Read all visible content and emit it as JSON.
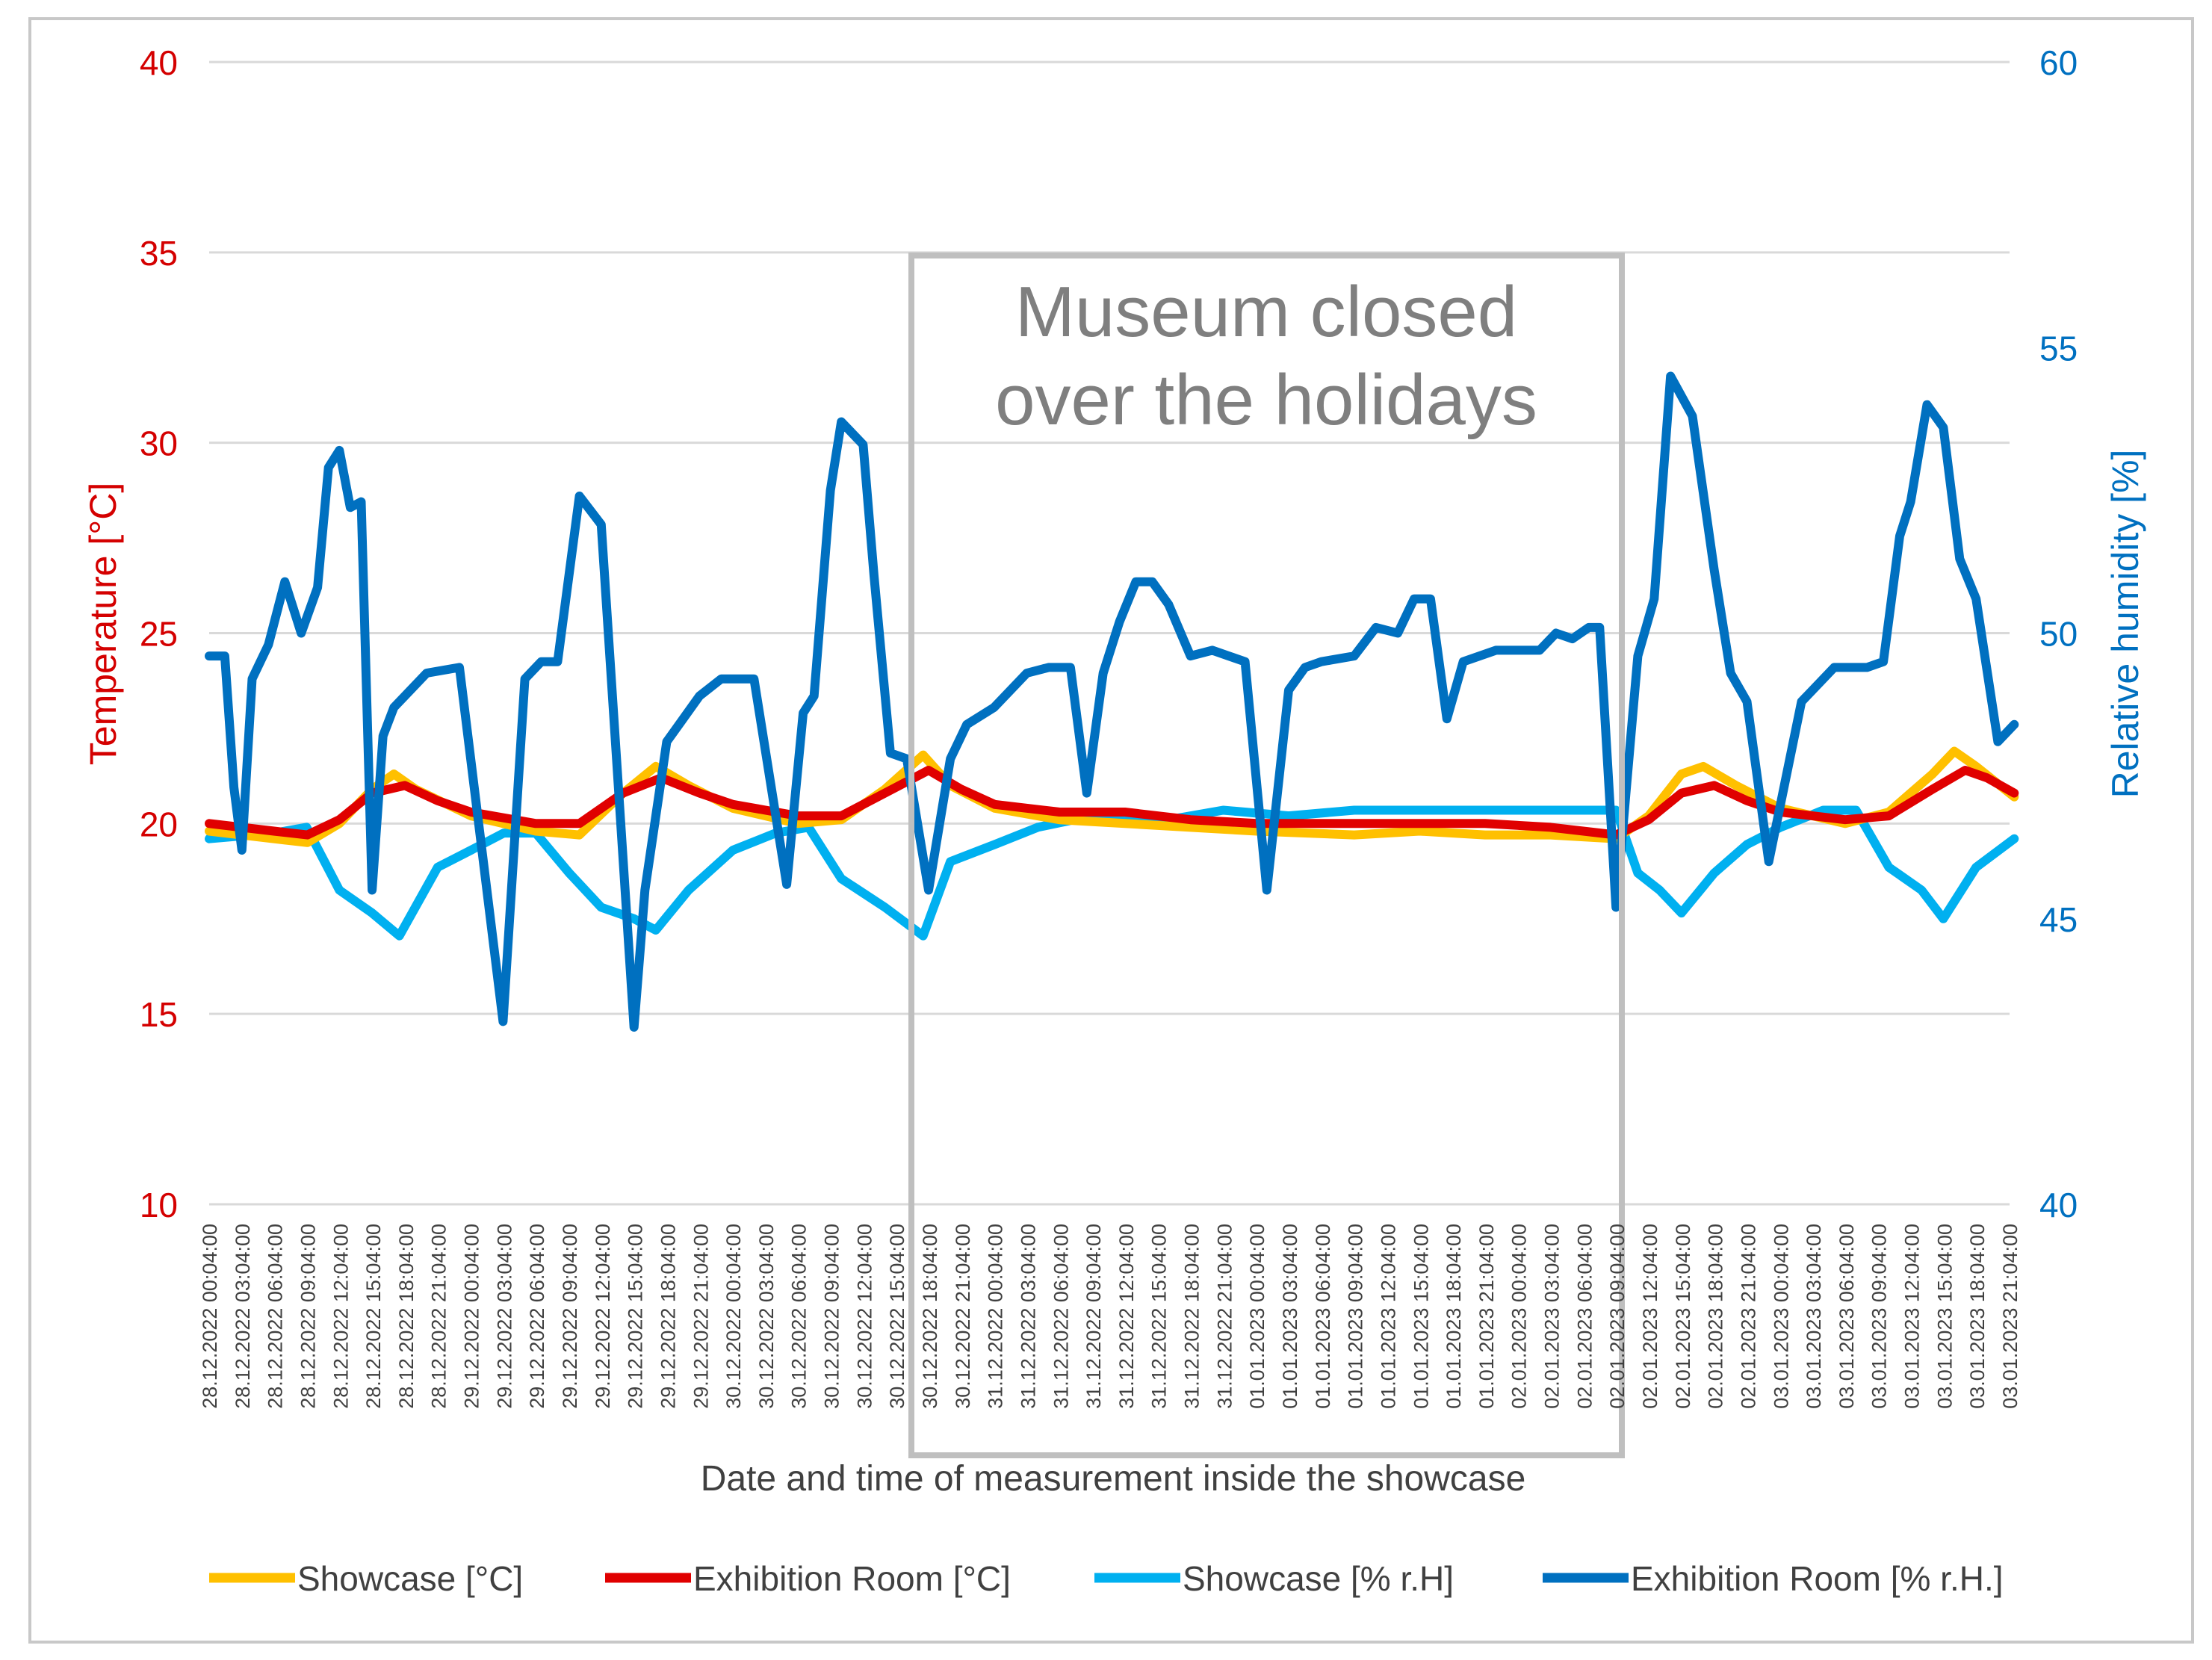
{
  "chart_data": {
    "type": "line",
    "xlabel": "Date and time of measurement inside the showcase",
    "ylabel_left": "Temperature [°C]",
    "ylabel_right": "Relative humidity [%]",
    "ylim_left": [
      10,
      40
    ],
    "ylim_right": [
      40,
      60
    ],
    "yticks_left": [
      "10",
      "15",
      "20",
      "25",
      "30",
      "35",
      "40"
    ],
    "yticks_right": [
      "40",
      "45",
      "50",
      "55",
      "60"
    ],
    "grid": true,
    "legend_position": "bottom",
    "x_tick_labels": [
      "28.12.2022 00:04:00",
      "28.12.2022 03:04:00",
      "28.12.2022 06:04:00",
      "28.12.2022 09:04:00",
      "28.12.2022 12:04:00",
      "28.12.2022 15:04:00",
      "28.12.2022 18:04:00",
      "28.12.2022 21:04:00",
      "29.12.2022 00:04:00",
      "29.12.2022 03:04:00",
      "29.12.2022 06:04:00",
      "29.12.2022 09:04:00",
      "29.12.2022 12:04:00",
      "29.12.2022 15:04:00",
      "29.12.2022 18:04:00",
      "29.12.2022 21:04:00",
      "30.12.2022 00:04:00",
      "30.12.2022 03:04:00",
      "30.12.2022 06:04:00",
      "30.12.2022 09:04:00",
      "30.12.2022 12:04:00",
      "30.12.2022 15:04:00",
      "30.12.2022 18:04:00",
      "30.12.2022 21:04:00",
      "31.12.2022 00:04:00",
      "31.12.2022 03:04:00",
      "31.12.2022 06:04:00",
      "31.12.2022 09:04:00",
      "31.12.2022 12:04:00",
      "31.12.2022 15:04:00",
      "31.12.2022 18:04:00",
      "31.12.2022 21:04:00",
      "01.01.2023 00:04:00",
      "01.01.2023 03:04:00",
      "01.01.2023 06:04:00",
      "01.01.2023 09:04:00",
      "01.01.2023 12:04:00",
      "01.01.2023 15:04:00",
      "01.01.2023 18:04:00",
      "01.01.2023 21:04:00",
      "02.01.2023 00:04:00",
      "02.01.2023 03:04:00",
      "02.01.2023 06:04:00",
      "02.01.2023 09:04:00",
      "02.01.2023 12:04:00",
      "02.01.2023 15:04:00",
      "02.01.2023 18:04:00",
      "02.01.2023 21:04:00",
      "03.01.2023 00:04:00",
      "03.01.2023 03:04:00",
      "03.01.2023 06:04:00",
      "03.01.2023 09:04:00",
      "03.01.2023 12:04:00",
      "03.01.2023 15:04:00",
      "03.01.2023 18:04:00",
      "03.01.2023 21:04:00"
    ],
    "x_start": "2022-12-28 00:04",
    "x_end": "2023-01-03 21:04",
    "annotation": {
      "lines": [
        "Museum closed",
        "over the holidays"
      ],
      "x_range": [
        "2022-12-30 17:00",
        "2023-01-02 11:00"
      ]
    },
    "series": [
      {
        "name": "Showcase [°C]",
        "axis": "left",
        "color": "#FFC000",
        "x": [
          "2022-12-28 00:04",
          "2022-12-28 06:00",
          "2022-12-28 09:04",
          "2022-12-28 12:00",
          "2022-12-28 15:00",
          "2022-12-28 17:00",
          "2022-12-28 19:00",
          "2022-12-29 00:04",
          "2022-12-29 06:00",
          "2022-12-29 10:00",
          "2022-12-29 14:00",
          "2022-12-29 17:00",
          "2022-12-29 20:00",
          "2022-12-30 00:04",
          "2022-12-30 06:00",
          "2022-12-30 10:00",
          "2022-12-30 14:00",
          "2022-12-30 17:30",
          "2022-12-30 20:00",
          "2022-12-31 00:04",
          "2022-12-31 06:00",
          "2022-12-31 12:00",
          "2022-12-31 18:00",
          "2023-01-01 00:04",
          "2023-01-01 09:00",
          "2023-01-01 15:00",
          "2023-01-01 21:00",
          "2023-01-02 03:00",
          "2023-01-02 09:00",
          "2023-01-02 12:00",
          "2023-01-02 15:00",
          "2023-01-02 17:00",
          "2023-01-02 20:00",
          "2023-01-03 00:04",
          "2023-01-03 06:00",
          "2023-01-03 10:00",
          "2023-01-03 14:00",
          "2023-01-03 16:00",
          "2023-01-03 18:00",
          "2023-01-03 21:30"
        ],
        "y": [
          19.8,
          19.6,
          19.5,
          20.0,
          20.9,
          21.3,
          20.9,
          20.2,
          19.8,
          19.7,
          20.8,
          21.5,
          21.0,
          20.4,
          20.0,
          20.1,
          20.9,
          21.8,
          21.0,
          20.4,
          20.1,
          20.0,
          19.9,
          19.8,
          19.7,
          19.8,
          19.7,
          19.7,
          19.6,
          20.2,
          21.3,
          21.5,
          21.0,
          20.4,
          20.0,
          20.3,
          21.3,
          21.9,
          21.5,
          20.7
        ]
      },
      {
        "name": "Exhibition Room [°C]",
        "axis": "left",
        "color": "#E00000",
        "x": [
          "2022-12-28 00:04",
          "2022-12-28 06:00",
          "2022-12-28 09:04",
          "2022-12-28 12:00",
          "2022-12-28 15:00",
          "2022-12-28 18:00",
          "2022-12-28 21:00",
          "2022-12-29 00:04",
          "2022-12-29 06:00",
          "2022-12-29 10:00",
          "2022-12-29 14:00",
          "2022-12-29 17:30",
          "2022-12-29 21:00",
          "2022-12-30 00:04",
          "2022-12-30 06:00",
          "2022-12-30 10:00",
          "2022-12-30 14:00",
          "2022-12-30 18:00",
          "2022-12-30 21:00",
          "2022-12-31 00:04",
          "2022-12-31 06:00",
          "2022-12-31 12:00",
          "2022-12-31 18:00",
          "2023-01-01 00:04",
          "2023-01-01 09:00",
          "2023-01-01 15:00",
          "2023-01-01 21:00",
          "2023-01-02 03:00",
          "2023-01-02 09:00",
          "2023-01-02 12:00",
          "2023-01-02 15:00",
          "2023-01-02 18:00",
          "2023-01-02 21:00",
          "2023-01-03 00:04",
          "2023-01-03 06:00",
          "2023-01-03 10:00",
          "2023-01-03 14:00",
          "2023-01-03 17:00",
          "2023-01-03 19:00",
          "2023-01-03 21:30"
        ],
        "y": [
          20.0,
          19.8,
          19.7,
          20.1,
          20.8,
          21.0,
          20.6,
          20.3,
          20.0,
          20.0,
          20.8,
          21.2,
          20.8,
          20.5,
          20.2,
          20.2,
          20.8,
          21.4,
          20.9,
          20.5,
          20.3,
          20.3,
          20.1,
          20.0,
          20.0,
          20.0,
          20.0,
          19.9,
          19.7,
          20.1,
          20.8,
          21.0,
          20.6,
          20.3,
          20.1,
          20.2,
          20.9,
          21.4,
          21.2,
          20.8
        ]
      },
      {
        "name": "Showcase [% r.H]",
        "axis": "right",
        "color": "#00B0F0",
        "x": [
          "2022-12-28 00:04",
          "2022-12-28 06:00",
          "2022-12-28 09:00",
          "2022-12-28 12:00",
          "2022-12-28 15:00",
          "2022-12-28 17:30",
          "2022-12-28 21:00",
          "2022-12-29 00:04",
          "2022-12-29 03:04",
          "2022-12-29 06:00",
          "2022-12-29 09:04",
          "2022-12-29 12:00",
          "2022-12-29 15:00",
          "2022-12-29 17:00",
          "2022-12-29 20:00",
          "2022-12-30 00:04",
          "2022-12-30 04:00",
          "2022-12-30 07:00",
          "2022-12-30 10:00",
          "2022-12-30 14:00",
          "2022-12-30 17:30",
          "2022-12-30 20:00",
          "2022-12-31 00:04",
          "2022-12-31 04:00",
          "2022-12-31 09:00",
          "2022-12-31 15:00",
          "2022-12-31 21:00",
          "2023-01-01 03:00",
          "2023-01-01 09:00",
          "2023-01-01 15:00",
          "2023-01-01 21:00",
          "2023-01-02 03:00",
          "2023-01-02 09:00",
          "2023-01-02 11:00",
          "2023-01-02 13:00",
          "2023-01-02 15:00",
          "2023-01-02 18:00",
          "2023-01-02 21:00",
          "2023-01-03 00:04",
          "2023-01-03 04:00",
          "2023-01-03 07:00",
          "2023-01-03 10:00",
          "2023-01-03 13:00",
          "2023-01-03 15:00",
          "2023-01-03 18:00",
          "2023-01-03 21:30"
        ],
        "y": [
          46.4,
          46.5,
          46.6,
          45.5,
          45.1,
          44.7,
          45.9,
          46.2,
          46.5,
          46.5,
          45.8,
          45.2,
          45.0,
          44.8,
          45.5,
          46.2,
          46.5,
          46.6,
          45.7,
          45.2,
          44.7,
          46.0,
          46.3,
          46.6,
          46.8,
          46.7,
          46.9,
          46.8,
          46.9,
          46.9,
          46.9,
          46.9,
          46.9,
          45.8,
          45.5,
          45.1,
          45.8,
          46.3,
          46.6,
          46.9,
          46.9,
          45.9,
          45.5,
          45.0,
          45.9,
          46.4
        ]
      },
      {
        "name": "Exhibition Room [% r.H.]",
        "axis": "right",
        "color": "#0070C0",
        "x": [
          "2022-12-28 00:04",
          "2022-12-28 01:30",
          "2022-12-28 02:20",
          "2022-12-28 03:04",
          "2022-12-28 04:00",
          "2022-12-28 05:30",
          "2022-12-28 07:00",
          "2022-12-28 08:30",
          "2022-12-28 10:00",
          "2022-12-28 11:00",
          "2022-12-28 12:00",
          "2022-12-28 13:00",
          "2022-12-28 14:00",
          "2022-12-28 15:00",
          "2022-12-28 16:00",
          "2022-12-28 17:00",
          "2022-12-28 18:00",
          "2022-12-28 20:00",
          "2022-12-28 23:00",
          "2022-12-29 03:00",
          "2022-12-29 05:00",
          "2022-12-29 06:30",
          "2022-12-29 08:00",
          "2022-12-29 10:00",
          "2022-12-29 12:00",
          "2022-12-29 13:30",
          "2022-12-29 15:00",
          "2022-12-29 16:00",
          "2022-12-29 18:00",
          "2022-12-29 19:30",
          "2022-12-29 21:00",
          "2022-12-29 23:00",
          "2022-12-30 02:00",
          "2022-12-30 05:00",
          "2022-12-30 06:30",
          "2022-12-30 07:30",
          "2022-12-30 09:00",
          "2022-12-30 10:00",
          "2022-12-30 12:00",
          "2022-12-30 13:00",
          "2022-12-30 14:30",
          "2022-12-30 16:00",
          "2022-12-30 18:00",
          "2022-12-30 20:00",
          "2022-12-30 21:30",
          "2022-12-31 00:00",
          "2022-12-31 03:00",
          "2022-12-31 05:00",
          "2022-12-31 07:00",
          "2022-12-31 08:30",
          "2022-12-31 10:00",
          "2022-12-31 11:30",
          "2022-12-31 13:00",
          "2022-12-31 14:30",
          "2022-12-31 16:00",
          "2022-12-31 18:00",
          "2022-12-31 20:00",
          "2022-12-31 23:00",
          "2023-01-01 01:00",
          "2023-01-01 03:00",
          "2023-01-01 04:30",
          "2023-01-01 06:00",
          "2023-01-01 09:00",
          "2023-01-01 11:00",
          "2023-01-01 13:00",
          "2023-01-01 14:30",
          "2023-01-01 16:00",
          "2023-01-01 17:30",
          "2023-01-01 19:00",
          "2023-01-01 22:00",
          "2023-01-02 02:00",
          "2023-01-02 03:30",
          "2023-01-02 05:00",
          "2023-01-02 06:30",
          "2023-01-02 07:30",
          "2023-01-02 09:00",
          "2023-01-02 11:00",
          "2023-01-02 12:30",
          "2023-01-02 14:00",
          "2023-01-02 16:00",
          "2023-01-02 18:00",
          "2023-01-02 19:30",
          "2023-01-02 21:00",
          "2023-01-02 23:00",
          "2023-01-03 02:00",
          "2023-01-03 05:00",
          "2023-01-03 08:00",
          "2023-01-03 09:30",
          "2023-01-03 11:00",
          "2023-01-03 12:00",
          "2023-01-03 13:30",
          "2023-01-03 15:00",
          "2023-01-03 16:30",
          "2023-01-03 18:00",
          "2023-01-03 20:00",
          "2023-01-03 21:30"
        ],
        "y": [
          49.6,
          49.6,
          47.3,
          46.2,
          49.2,
          49.8,
          50.9,
          50.0,
          50.8,
          52.9,
          53.2,
          52.2,
          52.3,
          45.5,
          48.2,
          48.7,
          48.9,
          49.3,
          49.4,
          43.2,
          49.2,
          49.5,
          49.5,
          52.4,
          51.9,
          47.5,
          43.1,
          45.5,
          48.1,
          48.5,
          48.9,
          49.2,
          49.2,
          45.6,
          48.6,
          48.9,
          52.5,
          53.7,
          53.3,
          51.0,
          47.9,
          47.8,
          45.5,
          47.8,
          48.4,
          48.7,
          49.3,
          49.4,
          49.4,
          47.2,
          49.3,
          50.2,
          50.9,
          50.9,
          50.5,
          49.6,
          49.7,
          49.5,
          45.5,
          49.0,
          49.4,
          49.5,
          49.6,
          50.1,
          50.0,
          50.6,
          50.6,
          48.5,
          49.5,
          49.7,
          49.7,
          50.0,
          49.9,
          50.1,
          50.1,
          45.2,
          49.6,
          50.6,
          54.5,
          53.8,
          51.1,
          49.3,
          48.8,
          46.0,
          48.8,
          49.4,
          49.4,
          49.5,
          51.7,
          52.3,
          54.0,
          53.6,
          51.3,
          50.6,
          48.1,
          48.4
        ]
      }
    ]
  }
}
